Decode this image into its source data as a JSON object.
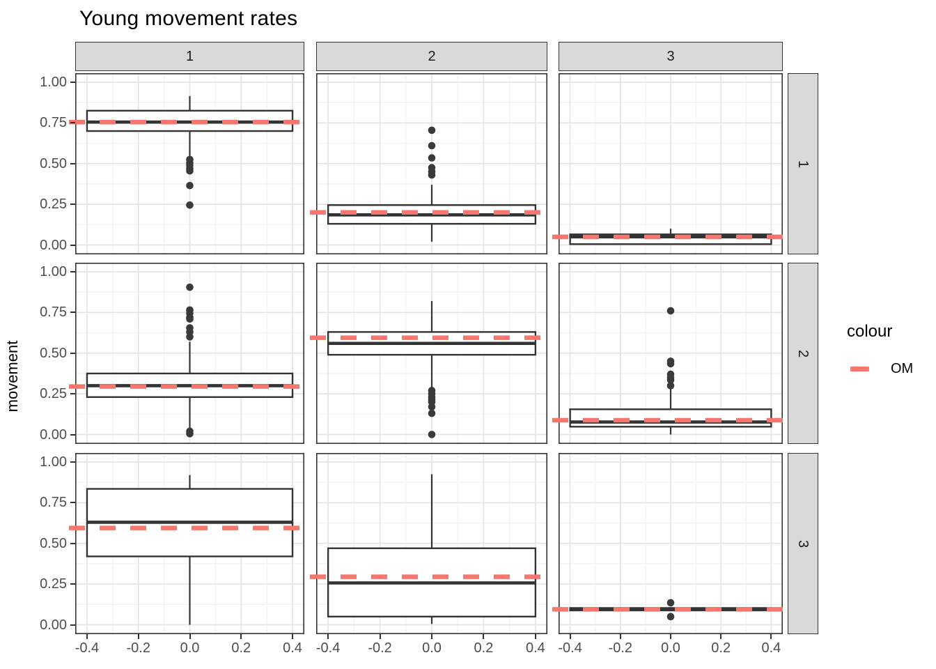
{
  "chart_data": {
    "type": "boxplot",
    "title": "Young movement rates",
    "ylabel": "movement",
    "xlabel": "",
    "facet_cols": [
      "1",
      "2",
      "3"
    ],
    "facet_rows": [
      "1",
      "2",
      "3"
    ],
    "x_ticks": [
      -0.4,
      -0.2,
      0.0,
      0.2,
      0.4
    ],
    "x_tick_labels": [
      "-0.4",
      "-0.2",
      "0.0",
      "0.2",
      "0.4"
    ],
    "y_ticks": [
      0.0,
      0.25,
      0.5,
      0.75,
      1.0
    ],
    "y_tick_labels": [
      "0.00",
      "0.25",
      "0.50",
      "0.75",
      "1.00"
    ],
    "xlim": [
      -0.446,
      0.446
    ],
    "ylim": [
      -0.056,
      1.073
    ],
    "grid": "on",
    "box_center_x": 0.0,
    "box_half_width": 0.4,
    "legend": {
      "title": "colour",
      "position": "right",
      "entries": [
        {
          "label": "OM",
          "color": "#F8766D",
          "style": "dashed"
        }
      ]
    },
    "panels": [
      {
        "row": "1",
        "col": "1",
        "stats": {
          "whisker_low": 0.54,
          "q1": 0.7,
          "median": 0.755,
          "q3": 0.825,
          "whisker_high": 0.915
        },
        "outliers": [
          0.525,
          0.505,
          0.49,
          0.47,
          0.455,
          0.365,
          0.245
        ],
        "om": 0.755
      },
      {
        "row": "1",
        "col": "2",
        "stats": {
          "whisker_low": 0.02,
          "q1": 0.13,
          "median": 0.185,
          "q3": 0.245,
          "whisker_high": 0.37
        },
        "outliers": [
          0.705,
          0.61,
          0.535,
          0.475,
          0.45,
          0.43
        ],
        "om": 0.2
      },
      {
        "row": "1",
        "col": "3",
        "stats": {
          "whisker_low": 0.0,
          "q1": 0.005,
          "median": 0.05,
          "q3": 0.065,
          "whisker_high": 0.1
        },
        "outliers": [],
        "om": 0.05
      },
      {
        "row": "2",
        "col": "1",
        "stats": {
          "whisker_low": 0.035,
          "q1": 0.23,
          "median": 0.3,
          "q3": 0.375,
          "whisker_high": 0.57
        },
        "outliers": [
          0.905,
          0.765,
          0.745,
          0.72,
          0.71,
          0.655,
          0.63,
          0.6,
          0.02,
          0.005
        ],
        "om": 0.295
      },
      {
        "row": "2",
        "col": "2",
        "stats": {
          "whisker_low": 0.29,
          "q1": 0.49,
          "median": 0.56,
          "q3": 0.63,
          "whisker_high": 0.82
        },
        "outliers": [
          0.27,
          0.25,
          0.23,
          0.215,
          0.2,
          0.17,
          0.13,
          0.0
        ],
        "om": 0.595
      },
      {
        "row": "2",
        "col": "3",
        "stats": {
          "whisker_low": 0.0,
          "q1": 0.048,
          "median": 0.077,
          "q3": 0.155,
          "whisker_high": 0.28
        },
        "outliers": [
          0.76,
          0.45,
          0.435,
          0.37,
          0.35,
          0.335,
          0.3
        ],
        "om": 0.088
      },
      {
        "row": "3",
        "col": "1",
        "stats": {
          "whisker_low": 0.0,
          "q1": 0.42,
          "median": 0.63,
          "q3": 0.835,
          "whisker_high": 0.92
        },
        "outliers": [],
        "om": 0.595
      },
      {
        "row": "3",
        "col": "2",
        "stats": {
          "whisker_low": 0.005,
          "q1": 0.05,
          "median": 0.257,
          "q3": 0.47,
          "whisker_high": 0.925
        },
        "outliers": [],
        "om": 0.295
      },
      {
        "row": "3",
        "col": "3",
        "stats": {
          "whisker_low": 0.083,
          "q1": 0.088,
          "median": 0.095,
          "q3": 0.103,
          "whisker_high": 0.108
        },
        "outliers": [
          0.135,
          0.05
        ],
        "om": 0.095
      }
    ],
    "colors": {
      "om_line": "#F8766D",
      "box_stroke": "#333333",
      "box_fill": "#FFFFFF",
      "outlier": "#3A3A3A",
      "panel_border": "#333333",
      "panel_bg": "#FFFFFF",
      "strip_fill": "#D9D9D9",
      "grid_major": "#E5E5E5",
      "grid_minor": "#F2F2F2",
      "tick_label": "#4D4D4D"
    }
  }
}
